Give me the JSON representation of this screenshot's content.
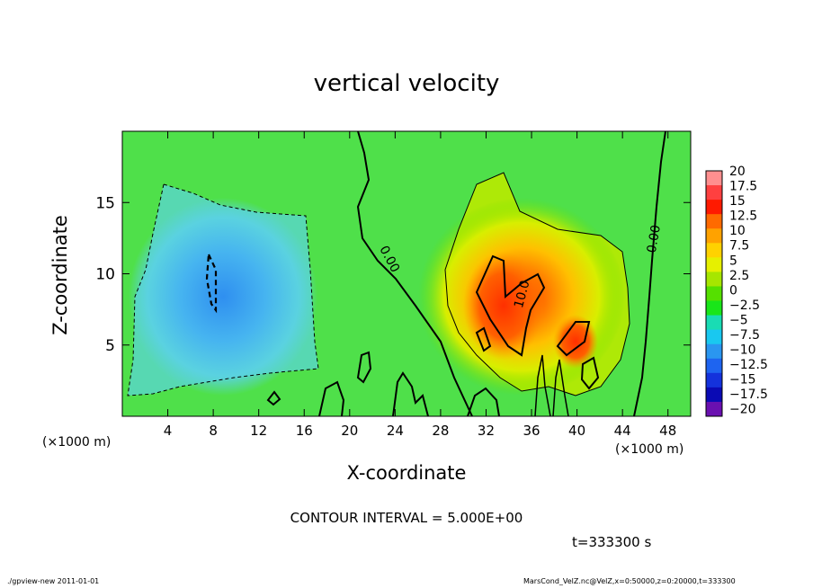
{
  "title": "vertical velocity",
  "footer": {
    "left": "./gpview-new  2011-01-01",
    "right": "MarsCond_VelZ.nc@VelZ,x=0:50000,z=0:20000,t=333300"
  },
  "contour_interval": "CONTOUR INTERVAL = 5.000E+00",
  "time_label": "t=333300 s",
  "chart_data": {
    "type": "heatmap",
    "title": "vertical velocity",
    "xlabel": "X-coordinate",
    "ylabel": "Z-coordinate",
    "x_unit": "(×1000 m)",
    "y_unit": "(×1000 m)",
    "xlim": [
      0,
      50
    ],
    "ylim": [
      0,
      20
    ],
    "x_ticks": [
      4,
      8,
      12,
      16,
      20,
      24,
      28,
      32,
      36,
      40,
      44,
      48
    ],
    "y_ticks": [
      5,
      10,
      15
    ],
    "contour_labels": [
      {
        "text": "0.00",
        "x": 23.2,
        "z": 10.9,
        "angle": 62
      },
      {
        "text": "10.0",
        "x": 35.5,
        "z": 8.5,
        "angle": -75
      },
      {
        "text": "0.00",
        "x": 47.1,
        "z": 12.4,
        "angle": -80
      }
    ],
    "features": [
      {
        "name": "downdraft",
        "x": 9,
        "z": 9,
        "sx": 6,
        "sz": 6,
        "value": -8
      },
      {
        "name": "updraft",
        "x": 33,
        "z": 8.5,
        "sx": 3.5,
        "sz": 3.5,
        "value": 16
      }
    ],
    "colorbar": {
      "levels": [
        "20",
        "17.5",
        "15",
        "12.5",
        "10",
        "7.5",
        "5",
        "2.5",
        "0",
        "−2.5",
        "−5",
        "−7.5",
        "−10",
        "−12.5",
        "−15",
        "−17.5",
        "−20"
      ],
      "colors": [
        "#ff8f8f",
        "#ff4040",
        "#ff1a00",
        "#ff6a00",
        "#ffa200",
        "#ffd200",
        "#e6f000",
        "#a6e600",
        "#55e000",
        "#19e619",
        "#19dcb4",
        "#19c8f0",
        "#2a96f0",
        "#1e64f0",
        "#1432dc",
        "#0a0ab4",
        "#6a10b0"
      ]
    }
  }
}
